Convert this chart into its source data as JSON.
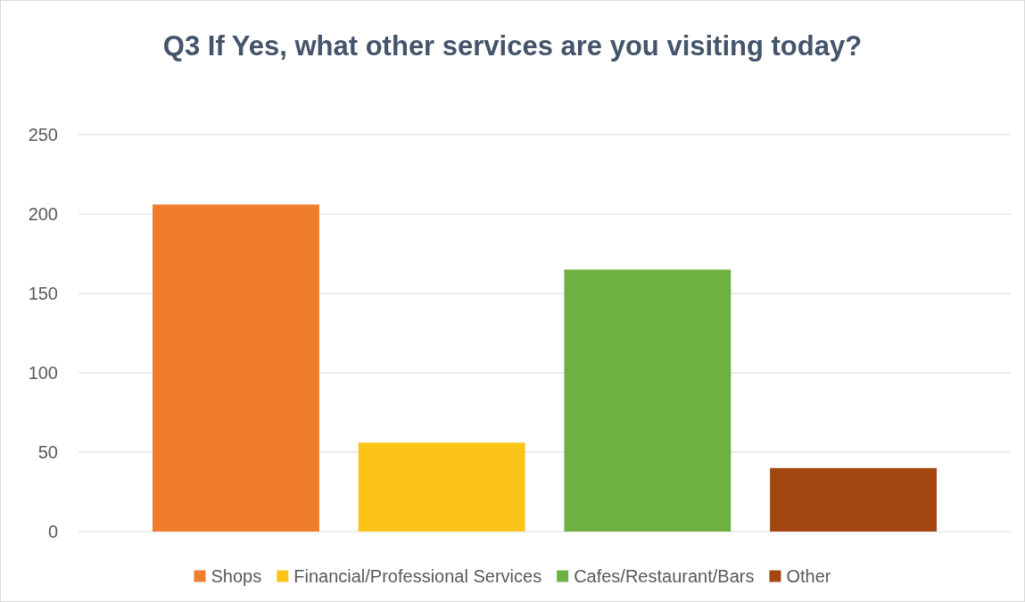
{
  "chart_data": {
    "type": "bar",
    "title": "Q3 If Yes, what other services are you visiting today?",
    "categories": [
      null
    ],
    "series": [
      {
        "name": "Shops",
        "color": "#f07d2c",
        "values": [
          206
        ]
      },
      {
        "name": "Financial/Professional Services",
        "color": "#fcc419",
        "values": [
          56
        ]
      },
      {
        "name": "Cafes/Restaurant/Bars",
        "color": "#6fb043",
        "values": [
          165
        ]
      },
      {
        "name": "Other",
        "color": "#a3460f",
        "values": [
          40
        ]
      }
    ],
    "ylim": [
      0,
      250
    ],
    "yticks": [
      0,
      50,
      100,
      150,
      200,
      250
    ],
    "grid": "y",
    "legend": "bottom"
  }
}
